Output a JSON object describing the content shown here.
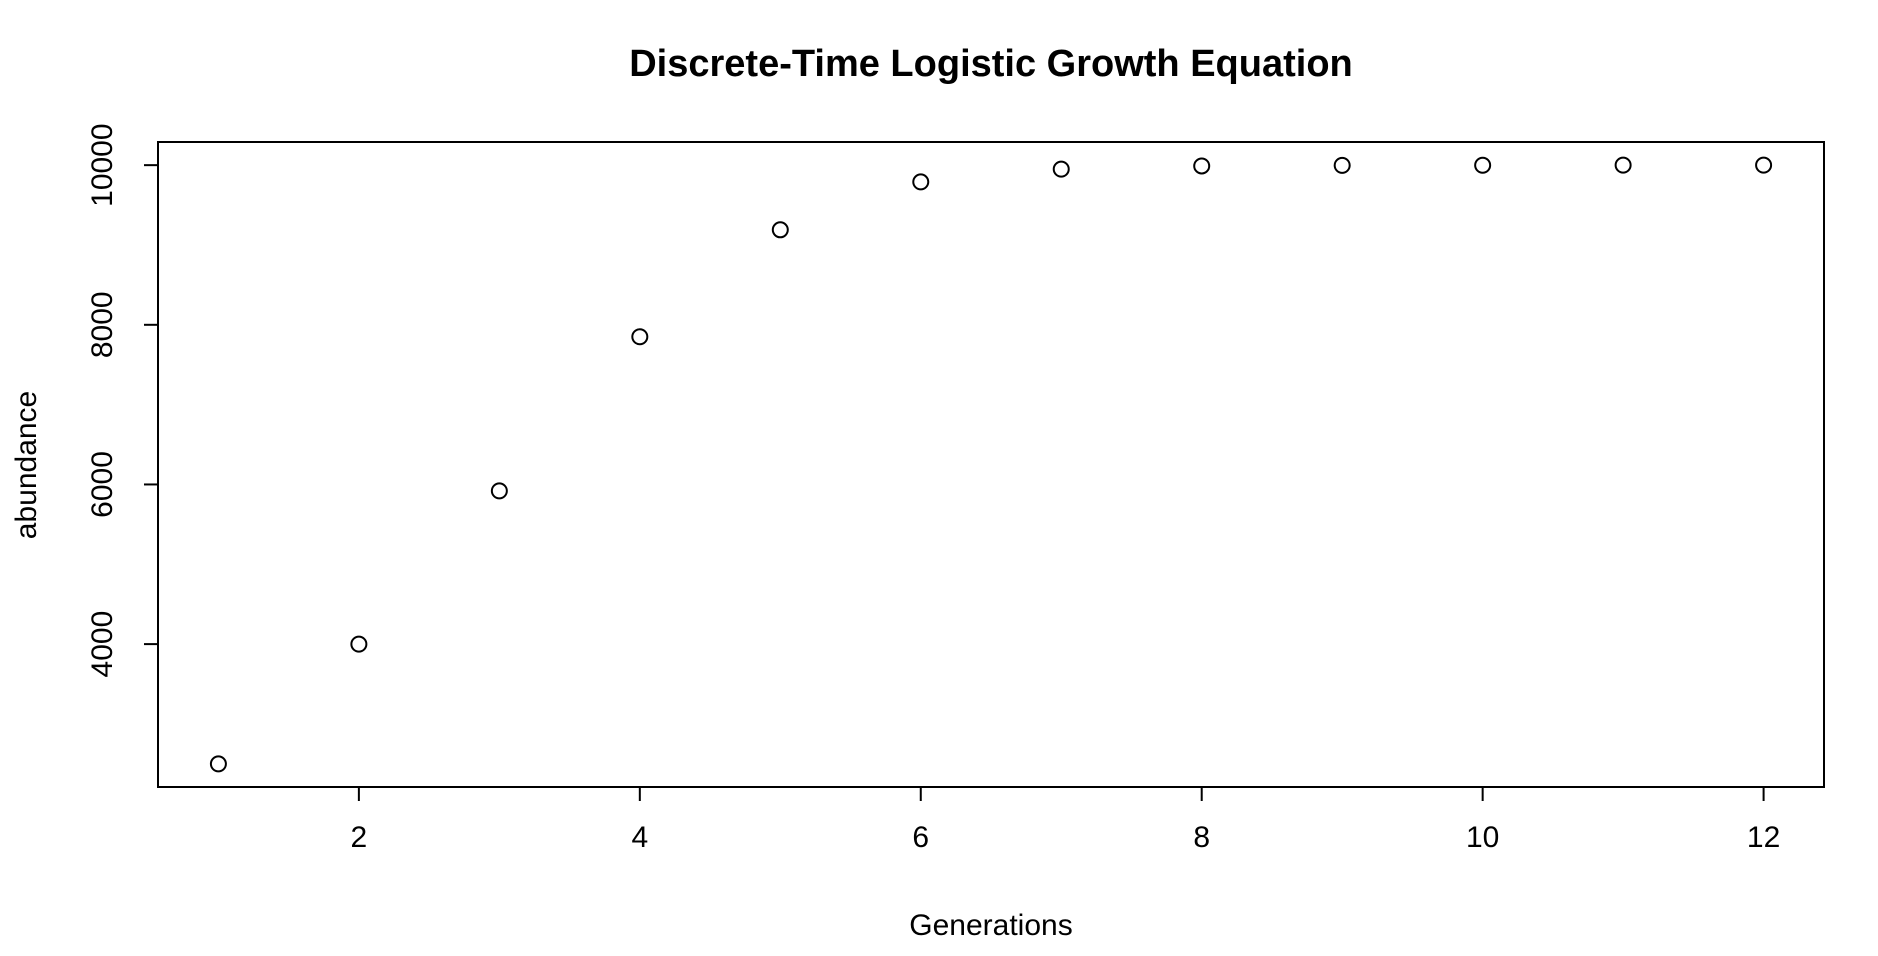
{
  "chart_data": {
    "type": "scatter",
    "title": "Discrete-Time Logistic Growth Equation",
    "xlabel": "Generations",
    "ylabel": "abundance",
    "x": [
      1,
      2,
      3,
      4,
      5,
      6,
      7,
      8,
      9,
      10,
      11,
      12
    ],
    "y": [
      2500,
      4000,
      5920,
      7850,
      9190,
      9790,
      9950,
      9990,
      9997,
      9999,
      10000,
      10000
    ],
    "xlim": [
      0.57,
      12.43
    ],
    "ylim": [
      2210,
      10290
    ],
    "xticks": [
      2,
      4,
      6,
      8,
      10,
      12
    ],
    "yticks": [
      4000,
      6000,
      8000,
      10000
    ],
    "marker": "open-circle",
    "grid": false,
    "colors": {
      "points": "#000000",
      "axes": "#000000",
      "background": "#ffffff"
    }
  }
}
